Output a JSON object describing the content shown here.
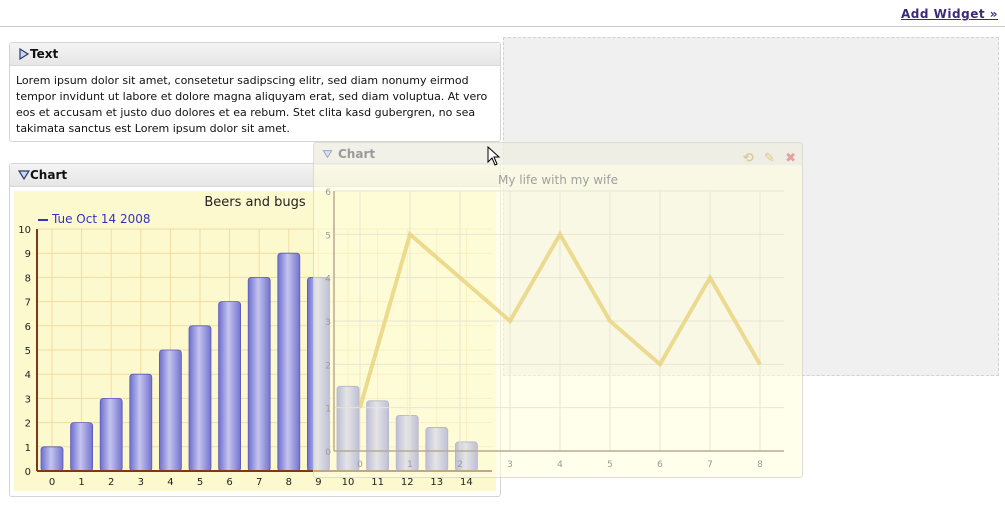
{
  "header": {
    "add_widget_label": "Add Widget »"
  },
  "text_widget": {
    "title": "Text",
    "body": "Lorem ipsum dolor sit amet, consetetur sadipscing elitr, sed diam nonumy eirmod tempor invidunt ut labore et dolore magna aliquyam erat, sed diam voluptua. At vero eos et accusam et justo duo dolores et ea rebum. Stet clita kasd gubergren, no sea takimata sanctus est Lorem ipsum dolor sit amet."
  },
  "chart_widget": {
    "title": "Chart"
  },
  "dragging_widget": {
    "title": "Chart",
    "icons": [
      "refresh-icon",
      "edit-icon",
      "close-icon"
    ]
  },
  "chart_data": [
    {
      "type": "bar",
      "title": "Beers and bugs",
      "series": [
        {
          "name": "Tue Oct 14 2008",
          "values": [
            1,
            2,
            3,
            4,
            5,
            6,
            7,
            8,
            9,
            8,
            3.5,
            2.9,
            2.3,
            1.8,
            1.2
          ]
        }
      ],
      "categories": [
        "0",
        "1",
        "2",
        "3",
        "4",
        "5",
        "6",
        "7",
        "8",
        "9",
        "10",
        "11",
        "12",
        "13",
        "14"
      ],
      "ylim": [
        0,
        10
      ],
      "grid": true,
      "legend": "top-left",
      "colors": {
        "bar": "#8585d8",
        "background": "#fdf9cf",
        "axis": "#7a3a1a"
      }
    },
    {
      "type": "line",
      "title": "My life with my wife",
      "x": [
        0,
        1,
        2,
        3,
        4,
        5,
        6,
        7,
        8
      ],
      "series": [
        {
          "values": [
            1,
            5,
            4,
            3,
            5,
            3,
            2,
            4,
            2
          ]
        }
      ],
      "ylim": [
        0,
        6
      ],
      "grid": true,
      "colors": {
        "line": "#e8d27a"
      }
    }
  ]
}
